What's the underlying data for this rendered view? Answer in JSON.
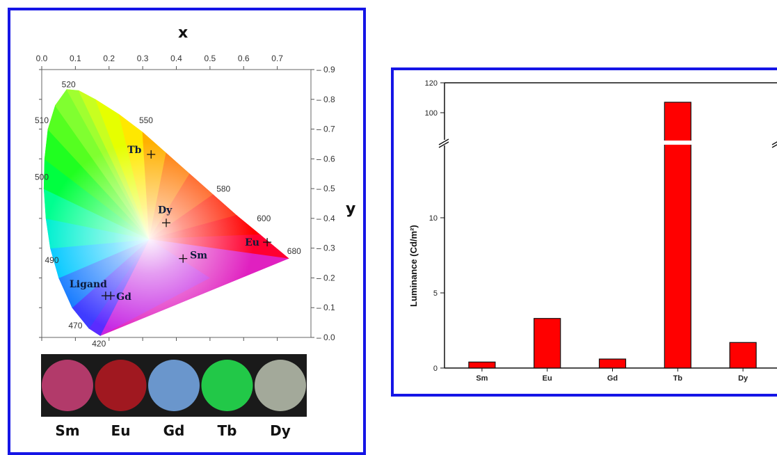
{
  "chart_data": [
    {
      "type": "scatter",
      "subtype": "cie-1931-chromaticity",
      "xlabel": "x",
      "ylabel": "y",
      "xlim": [
        0.0,
        0.8
      ],
      "ylim": [
        0.0,
        0.9
      ],
      "x_ticks": [
        "0.0",
        "0.1",
        "0.2",
        "0.3",
        "0.4",
        "0.5",
        "0.6",
        "0.7"
      ],
      "y_ticks": [
        "0.0",
        "0.1",
        "0.2",
        "0.3",
        "0.4",
        "0.5",
        "0.6",
        "0.7",
        "0.8",
        "0.9"
      ],
      "wavelength_labels": [
        {
          "text": "420",
          "x": 0.17,
          "y": -0.03
        },
        {
          "text": "470",
          "x": 0.1,
          "y": 0.03
        },
        {
          "text": "490",
          "x": 0.03,
          "y": 0.25
        },
        {
          "text": "500",
          "x": 0.0,
          "y": 0.53
        },
        {
          "text": "510",
          "x": 0.0,
          "y": 0.72
        },
        {
          "text": "520",
          "x": 0.08,
          "y": 0.84
        },
        {
          "text": "550",
          "x": 0.31,
          "y": 0.72
        },
        {
          "text": "580",
          "x": 0.54,
          "y": 0.49
        },
        {
          "text": "600",
          "x": 0.66,
          "y": 0.39
        },
        {
          "text": "680",
          "x": 0.75,
          "y": 0.28
        }
      ],
      "points": [
        {
          "label": "Tb",
          "x": 0.325,
          "y": 0.615
        },
        {
          "label": "Dy",
          "x": 0.37,
          "y": 0.385
        },
        {
          "label": "Eu",
          "x": 0.67,
          "y": 0.32
        },
        {
          "label": "Sm",
          "x": 0.42,
          "y": 0.265
        },
        {
          "label": "Ligand",
          "x": 0.19,
          "y": 0.14
        },
        {
          "label": "Gd",
          "x": 0.205,
          "y": 0.14
        }
      ]
    },
    {
      "type": "bar",
      "categories": [
        "Sm",
        "Eu",
        "Gd",
        "Tb",
        "Dy"
      ],
      "values": [
        0.4,
        3.3,
        0.6,
        107,
        1.7
      ],
      "ylabel": "Luminance (Cd/m²)",
      "y_ticks_lower": [
        "0",
        "5",
        "10"
      ],
      "y_ticks_upper": [
        "100",
        "120"
      ],
      "axis_break": true,
      "bar_color": "#ff0000"
    }
  ],
  "samples": {
    "labels": [
      "Sm",
      "Eu",
      "Gd",
      "Tb",
      "Dy"
    ],
    "colors": [
      "#b23a6a",
      "#a01820",
      "#6a96cc",
      "#22c848",
      "#a3a99a"
    ]
  },
  "colors": {
    "frame": "#1515e6",
    "bar": "#ff0000"
  }
}
